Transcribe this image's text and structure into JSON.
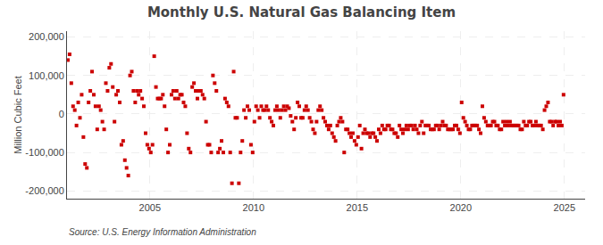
{
  "chart_data": {
    "type": "scatter",
    "title": "Monthly U.S. Natural Gas Balancing Item",
    "ylabel": "Million Cubic Feet",
    "annotations": [
      "Source: U.S. Energy Information Administration"
    ],
    "color": "#cc0000",
    "marker": "square",
    "grid": true,
    "xlim": [
      2001.0,
      2026.0
    ],
    "ylim": [
      -220000,
      215000
    ],
    "xticks": [
      2005,
      2010,
      2015,
      2020,
      2025
    ],
    "yticks": [
      {
        "value": -200000,
        "label": "-200,000"
      },
      {
        "value": -100000,
        "label": "-100,000"
      },
      0,
      {
        "value": 100000,
        "label": "100,000"
      },
      {
        "value": 200000,
        "label": "200,000"
      }
    ],
    "x": [
      2001.041667,
      2001.125,
      2001.208333,
      2001.291667,
      2001.375,
      2001.458333,
      2001.541667,
      2001.625,
      2001.708333,
      2001.791667,
      2001.875,
      2001.958333,
      2002.041667,
      2002.125,
      2002.208333,
      2002.291667,
      2002.375,
      2002.458333,
      2002.541667,
      2002.625,
      2002.708333,
      2002.791667,
      2002.875,
      2002.958333,
      2003.041667,
      2003.125,
      2003.208333,
      2003.291667,
      2003.375,
      2003.458333,
      2003.541667,
      2003.625,
      2003.708333,
      2003.791667,
      2003.875,
      2003.958333,
      2004.041667,
      2004.125,
      2004.208333,
      2004.291667,
      2004.375,
      2004.458333,
      2004.541667,
      2004.625,
      2004.708333,
      2004.791667,
      2004.875,
      2004.958333,
      2005.041667,
      2005.125,
      2005.208333,
      2005.291667,
      2005.375,
      2005.458333,
      2005.541667,
      2005.625,
      2005.708333,
      2005.791667,
      2005.875,
      2005.958333,
      2006.041667,
      2006.125,
      2006.208333,
      2006.291667,
      2006.375,
      2006.458333,
      2006.541667,
      2006.625,
      2006.708333,
      2006.791667,
      2006.875,
      2006.958333,
      2007.041667,
      2007.125,
      2007.208333,
      2007.291667,
      2007.375,
      2007.458333,
      2007.541667,
      2007.625,
      2007.708333,
      2007.791667,
      2007.875,
      2007.958333,
      2008.041667,
      2008.125,
      2008.208333,
      2008.291667,
      2008.375,
      2008.458333,
      2008.541667,
      2008.625,
      2008.708333,
      2008.791667,
      2008.875,
      2008.958333,
      2009.041667,
      2009.125,
      2009.208333,
      2009.291667,
      2009.375,
      2009.458333,
      2009.541667,
      2009.625,
      2009.708333,
      2009.791667,
      2009.875,
      2009.958333,
      2010.041667,
      2010.125,
      2010.208333,
      2010.291667,
      2010.375,
      2010.458333,
      2010.541667,
      2010.625,
      2010.708333,
      2010.791667,
      2010.875,
      2010.958333,
      2011.041667,
      2011.125,
      2011.208333,
      2011.291667,
      2011.375,
      2011.458333,
      2011.541667,
      2011.625,
      2011.708333,
      2011.791667,
      2011.875,
      2011.958333,
      2012.041667,
      2012.125,
      2012.208333,
      2012.291667,
      2012.375,
      2012.458333,
      2012.541667,
      2012.625,
      2012.708333,
      2012.791667,
      2012.875,
      2012.958333,
      2013.041667,
      2013.125,
      2013.208333,
      2013.291667,
      2013.375,
      2013.458333,
      2013.541667,
      2013.625,
      2013.708333,
      2013.791667,
      2013.875,
      2013.958333,
      2014.041667,
      2014.125,
      2014.208333,
      2014.291667,
      2014.375,
      2014.458333,
      2014.541667,
      2014.625,
      2014.708333,
      2014.791667,
      2014.875,
      2014.958333,
      2015.041667,
      2015.125,
      2015.208333,
      2015.291667,
      2015.375,
      2015.458333,
      2015.541667,
      2015.625,
      2015.708333,
      2015.791667,
      2015.875,
      2015.958333,
      2016.041667,
      2016.125,
      2016.208333,
      2016.291667,
      2016.375,
      2016.458333,
      2016.541667,
      2016.625,
      2016.708333,
      2016.791667,
      2016.875,
      2016.958333,
      2017.041667,
      2017.125,
      2017.208333,
      2017.291667,
      2017.375,
      2017.458333,
      2017.541667,
      2017.625,
      2017.708333,
      2017.791667,
      2017.875,
      2017.958333,
      2018.041667,
      2018.125,
      2018.208333,
      2018.291667,
      2018.375,
      2018.458333,
      2018.541667,
      2018.625,
      2018.708333,
      2018.791667,
      2018.875,
      2018.958333,
      2019.041667,
      2019.125,
      2019.208333,
      2019.291667,
      2019.375,
      2019.458333,
      2019.541667,
      2019.625,
      2019.708333,
      2019.791667,
      2019.875,
      2019.958333,
      2020.041667,
      2020.125,
      2020.208333,
      2020.291667,
      2020.375,
      2020.458333,
      2020.541667,
      2020.625,
      2020.708333,
      2020.791667,
      2020.875,
      2020.958333,
      2021.041667,
      2021.125,
      2021.208333,
      2021.291667,
      2021.375,
      2021.458333,
      2021.541667,
      2021.625,
      2021.708333,
      2021.791667,
      2021.875,
      2021.958333,
      2022.041667,
      2022.125,
      2022.208333,
      2022.291667,
      2022.375,
      2022.458333,
      2022.541667,
      2022.625,
      2022.708333,
      2022.791667,
      2022.875,
      2022.958333,
      2023.041667,
      2023.125,
      2023.208333,
      2023.291667,
      2023.375,
      2023.458333,
      2023.541667,
      2023.625,
      2023.708333,
      2023.791667,
      2023.875,
      2023.958333,
      2024.041667,
      2024.125,
      2024.208333,
      2024.291667,
      2024.375,
      2024.458333,
      2024.541667,
      2024.625,
      2024.708333,
      2024.791667,
      2024.875,
      2024.958333
    ],
    "values": [
      140000,
      155000,
      80000,
      20000,
      10000,
      -30000,
      30000,
      -10000,
      50000,
      -60000,
      -130000,
      -140000,
      30000,
      60000,
      110000,
      50000,
      20000,
      -40000,
      20000,
      10000,
      -20000,
      -40000,
      80000,
      60000,
      120000,
      130000,
      70000,
      -20000,
      50000,
      60000,
      30000,
      -80000,
      -70000,
      -120000,
      -140000,
      -160000,
      100000,
      110000,
      60000,
      30000,
      60000,
      50000,
      60000,
      40000,
      20000,
      -50000,
      -80000,
      -90000,
      -100000,
      -80000,
      150000,
      70000,
      40000,
      40000,
      40000,
      50000,
      20000,
      -40000,
      -100000,
      -80000,
      50000,
      60000,
      40000,
      60000,
      40000,
      50000,
      50000,
      30000,
      20000,
      -50000,
      -90000,
      -100000,
      70000,
      80000,
      60000,
      40000,
      60000,
      60000,
      50000,
      40000,
      -20000,
      -80000,
      -80000,
      -100000,
      100000,
      80000,
      60000,
      -100000,
      -90000,
      -70000,
      -100000,
      40000,
      30000,
      20000,
      -100000,
      -180000,
      110000,
      -10000,
      -10000,
      -180000,
      -100000,
      -70000,
      10000,
      -10000,
      20000,
      10000,
      -80000,
      -100000,
      -20000,
      20000,
      10000,
      -10000,
      20000,
      10000,
      10000,
      20000,
      10000,
      -10000,
      -20000,
      -30000,
      10000,
      20000,
      10000,
      -10000,
      10000,
      20000,
      10000,
      20000,
      15000,
      -5000,
      -20000,
      -40000,
      -10000,
      30000,
      20000,
      -10000,
      -10000,
      10000,
      20000,
      10000,
      -10000,
      -20000,
      -40000,
      -50000,
      -20000,
      10000,
      20000,
      10000,
      -10000,
      -20000,
      -30000,
      -40000,
      -30000,
      -50000,
      -60000,
      -70000,
      -30000,
      -20000,
      -10000,
      -20000,
      -100000,
      -40000,
      -40000,
      -50000,
      -60000,
      -50000,
      -70000,
      -80000,
      -60000,
      -30000,
      -90000,
      -50000,
      -40000,
      -50000,
      -50000,
      -60000,
      -50000,
      -50000,
      -60000,
      -70000,
      -40000,
      -50000,
      -30000,
      -40000,
      -40000,
      -30000,
      -30000,
      -40000,
      -40000,
      -50000,
      -50000,
      -60000,
      -30000,
      -40000,
      -50000,
      -40000,
      -30000,
      -40000,
      -30000,
      -30000,
      -40000,
      -30000,
      -40000,
      -50000,
      -30000,
      -20000,
      -50000,
      -30000,
      -30000,
      -30000,
      -40000,
      -40000,
      -40000,
      -30000,
      -30000,
      -40000,
      -30000,
      -20000,
      -30000,
      -30000,
      -40000,
      -40000,
      -40000,
      -40000,
      -30000,
      -30000,
      -40000,
      -50000,
      30000,
      -10000,
      -20000,
      -30000,
      -40000,
      -40000,
      -30000,
      -30000,
      -30000,
      -30000,
      -40000,
      -50000,
      20000,
      -10000,
      -20000,
      -30000,
      -30000,
      -30000,
      -20000,
      -20000,
      -30000,
      -30000,
      -40000,
      -40000,
      -20000,
      -30000,
      -20000,
      -30000,
      -20000,
      -30000,
      -30000,
      -30000,
      -30000,
      -30000,
      -40000,
      -40000,
      -20000,
      -30000,
      -30000,
      -20000,
      -20000,
      -30000,
      -30000,
      -20000,
      -30000,
      -30000,
      -30000,
      -40000,
      10000,
      20000,
      30000,
      -20000,
      -20000,
      -30000,
      -20000,
      -20000,
      -30000,
      -20000,
      -30000,
      50000
    ]
  }
}
